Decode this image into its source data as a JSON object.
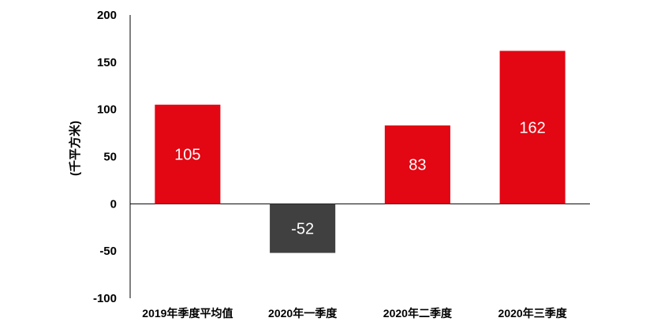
{
  "chart_data": {
    "type": "bar",
    "categories": [
      "2019年季度平均值",
      "2020年一季度",
      "2020年二季度",
      "2020年三季度"
    ],
    "values": [
      105,
      -52,
      83,
      162
    ],
    "data_labels": [
      "105",
      "-52",
      "83",
      "162"
    ],
    "ylabel": "(千平方米)",
    "ylim": [
      -100,
      200
    ],
    "yticks": [
      200,
      150,
      100,
      50,
      0,
      -50,
      -100
    ],
    "grid": false,
    "colors": {
      "positive": "#e30613",
      "negative": "#404040",
      "axis": "#000000"
    }
  }
}
